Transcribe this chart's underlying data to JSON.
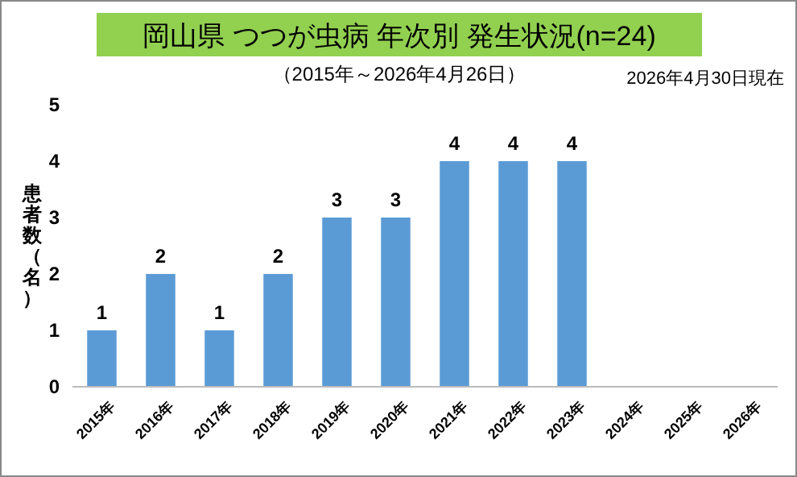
{
  "chart_data": {
    "type": "bar",
    "title": "岡山県 つつが虫病 年次別 発生状況(n=24)",
    "subtitle": "（2015年～2026年4月26日）",
    "annotations": [
      "2026年4月30日現在"
    ],
    "ylabel": "患者数（名）",
    "categories": [
      "2015年",
      "2016年",
      "2017年",
      "2018年",
      "2019年",
      "2020年",
      "2021年",
      "2022年",
      "2023年",
      "2024年",
      "2025年",
      "2026年"
    ],
    "values": [
      1,
      2,
      1,
      2,
      3,
      3,
      4,
      4,
      4,
      null,
      null,
      null
    ],
    "color": "#5b9bd5",
    "ylim": [
      0,
      5
    ],
    "yticks": [
      0,
      1,
      2,
      3,
      4,
      5
    ],
    "grid": false,
    "data_labels": true
  }
}
